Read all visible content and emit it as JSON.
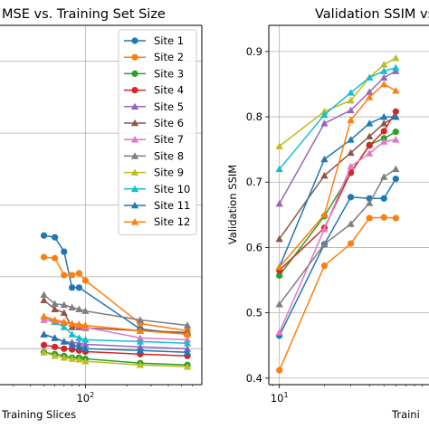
{
  "chart_data": [
    {
      "type": "line",
      "title": "MSE vs. Training Set Size",
      "xlabel": "Training Slices",
      "ylabel": "",
      "xscale": "log",
      "xlim": [
        24,
        700
      ],
      "ylim": [
        0,
        1
      ],
      "x_ticks": [
        {
          "value": 100,
          "label": "10",
          "exp": "2"
        }
      ],
      "y_ticks": [],
      "grid": true,
      "legend": "top-right",
      "series": [
        {
          "name": "Site 1",
          "color": "#1f77b4",
          "marker": "circle",
          "x": [
            50,
            60,
            70,
            80,
            90,
            250,
            550
          ],
          "y": [
            0.415,
            0.41,
            0.37,
            0.27,
            0.27,
            0.155,
            0.14
          ]
        },
        {
          "name": "Site 2",
          "color": "#ff7f0e",
          "marker": "circle",
          "x": [
            50,
            60,
            70,
            80,
            90,
            100,
            250,
            550
          ],
          "y": [
            0.355,
            0.352,
            0.305,
            0.305,
            0.31,
            0.29,
            0.17,
            0.15
          ]
        },
        {
          "name": "Site 3",
          "color": "#2ca02c",
          "marker": "circle",
          "x": [
            50,
            60,
            70,
            80,
            90,
            100,
            250,
            550
          ],
          "y": [
            0.09,
            0.085,
            0.08,
            0.075,
            0.075,
            0.072,
            0.06,
            0.055
          ]
        },
        {
          "name": "Site 4",
          "color": "#d62728",
          "marker": "circle",
          "x": [
            50,
            60,
            70,
            80,
            90,
            100,
            250,
            550
          ],
          "y": [
            0.11,
            0.105,
            0.1,
            0.098,
            0.095,
            0.092,
            0.085,
            0.08
          ]
        },
        {
          "name": "Site 5",
          "color": "#9467bd",
          "marker": "triangle",
          "x": [
            50,
            60,
            70,
            80,
            90,
            100,
            250,
            550
          ],
          "y": [
            0.14,
            0.13,
            0.12,
            0.118,
            0.115,
            0.112,
            0.105,
            0.1
          ]
        },
        {
          "name": "Site 6",
          "color": "#8c564b",
          "marker": "triangle",
          "x": [
            50,
            60,
            70,
            80,
            90,
            100,
            250,
            550
          ],
          "y": [
            0.235,
            0.21,
            0.2,
            0.16,
            0.16,
            0.158,
            0.15,
            0.145
          ]
        },
        {
          "name": "Site 7",
          "color": "#e377c2",
          "marker": "triangle",
          "x": [
            50,
            60,
            70,
            80,
            90,
            100,
            250,
            550
          ],
          "y": [
            0.18,
            0.175,
            0.172,
            0.17,
            0.165,
            0.16,
            0.13,
            0.125
          ]
        },
        {
          "name": "Site 8",
          "color": "#7f7f7f",
          "marker": "triangle",
          "x": [
            50,
            60,
            70,
            80,
            90,
            100,
            250,
            550
          ],
          "y": [
            0.25,
            0.225,
            0.222,
            0.215,
            0.21,
            0.205,
            0.18,
            0.165
          ]
        },
        {
          "name": "Site 9",
          "color": "#bcbd22",
          "marker": "triangle",
          "x": [
            50,
            60,
            70,
            80,
            90,
            100,
            250,
            550
          ],
          "y": [
            0.09,
            0.08,
            0.075,
            0.072,
            0.07,
            0.065,
            0.055,
            0.05
          ]
        },
        {
          "name": "Site 10",
          "color": "#17becf",
          "marker": "triangle",
          "x": [
            50,
            60,
            70,
            80,
            90,
            100,
            250,
            550
          ],
          "y": [
            0.19,
            0.175,
            0.16,
            0.14,
            0.13,
            0.125,
            0.12,
            0.115
          ]
        },
        {
          "name": "Site 11",
          "color": "#1f77b4",
          "marker": "triangle",
          "x": [
            50,
            60,
            70,
            80,
            90,
            100,
            250,
            550
          ],
          "y": [
            0.14,
            0.13,
            0.12,
            0.11,
            0.105,
            0.1,
            0.095,
            0.09
          ]
        },
        {
          "name": "Site 12",
          "color": "#ff7f0e",
          "marker": "triangle",
          "x": [
            50,
            60,
            70,
            80,
            90,
            100,
            250,
            550
          ],
          "y": [
            0.19,
            0.18,
            0.175,
            0.17,
            0.168,
            0.165,
            0.15,
            0.14
          ]
        }
      ]
    },
    {
      "type": "line",
      "title": "Validation SSIM vs",
      "xlabel": "Traini",
      "ylabel": "Validation SSIM",
      "xscale": "log",
      "xlim": [
        8.5,
        100
      ],
      "ylim": [
        0.39,
        0.94
      ],
      "x_ticks": [
        {
          "value": 10,
          "label": "10",
          "exp": "1"
        }
      ],
      "y_ticks": [
        0.4,
        0.5,
        0.6,
        0.7,
        0.8,
        0.9
      ],
      "grid": true,
      "series": [
        {
          "color": "#1f77b4",
          "marker": "circle",
          "x": [
            10,
            20,
            30,
            40,
            50,
            60
          ],
          "y": [
            0.465,
            0.605,
            0.677,
            0.675,
            0.675,
            0.705
          ]
        },
        {
          "color": "#ff7f0e",
          "marker": "circle",
          "x": [
            10,
            20,
            30,
            40,
            50,
            60
          ],
          "y": [
            0.412,
            0.572,
            0.606,
            0.645,
            0.646,
            0.645
          ]
        },
        {
          "color": "#2ca02c",
          "marker": "circle",
          "x": [
            10,
            20,
            30,
            40,
            50,
            60
          ],
          "y": [
            0.557,
            0.648,
            0.714,
            0.757,
            0.767,
            0.777
          ]
        },
        {
          "color": "#d62728",
          "marker": "circle",
          "x": [
            10,
            20,
            30,
            40,
            50,
            60
          ],
          "y": [
            0.565,
            0.63,
            0.715,
            0.756,
            0.778,
            0.808
          ]
        },
        {
          "color": "#9467bd",
          "marker": "triangle",
          "x": [
            10,
            20,
            30,
            40,
            50,
            60
          ],
          "y": [
            0.667,
            0.79,
            0.81,
            0.838,
            0.86,
            0.87
          ]
        },
        {
          "color": "#8c564b",
          "marker": "triangle",
          "x": [
            10,
            20,
            30,
            40,
            50,
            60
          ],
          "y": [
            0.613,
            0.71,
            0.745,
            0.77,
            0.79,
            0.8
          ]
        },
        {
          "color": "#e377c2",
          "marker": "triangle",
          "x": [
            10,
            20,
            30,
            40,
            50,
            60
          ],
          "y": [
            0.47,
            0.628,
            0.724,
            0.744,
            0.762,
            0.765
          ]
        },
        {
          "color": "#7f7f7f",
          "marker": "triangle",
          "x": [
            10,
            20,
            30,
            40,
            50,
            60
          ],
          "y": [
            0.513,
            0.605,
            0.636,
            0.668,
            0.708,
            0.72
          ]
        },
        {
          "color": "#bcbd22",
          "marker": "triangle",
          "x": [
            10,
            20,
            30,
            40,
            50,
            60
          ],
          "y": [
            0.755,
            0.808,
            0.825,
            0.86,
            0.88,
            0.89
          ]
        },
        {
          "color": "#17becf",
          "marker": "triangle",
          "x": [
            10,
            20,
            30,
            40,
            50,
            60
          ],
          "y": [
            0.72,
            0.803,
            0.837,
            0.86,
            0.87,
            0.875
          ]
        },
        {
          "color": "#1f77b4",
          "marker": "triangle",
          "x": [
            10,
            20,
            30,
            40,
            50,
            60
          ],
          "y": [
            0.57,
            0.735,
            0.765,
            0.79,
            0.8,
            0.8
          ]
        },
        {
          "color": "#ff7f0e",
          "marker": "triangle",
          "x": [
            10,
            20,
            30,
            40,
            50,
            60
          ],
          "y": [
            0.57,
            0.65,
            0.795,
            0.83,
            0.85,
            0.84
          ]
        }
      ]
    }
  ]
}
